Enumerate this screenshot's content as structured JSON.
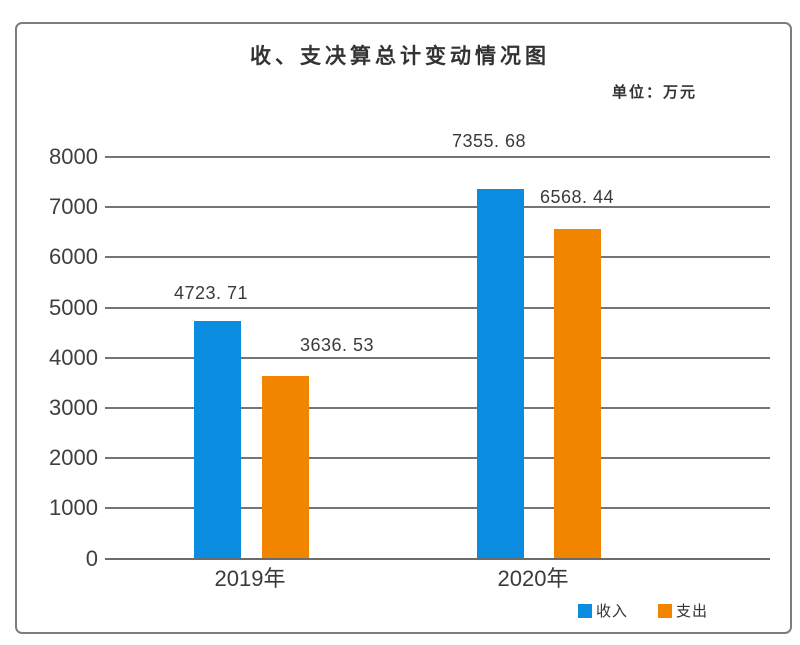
{
  "chart_data": {
    "type": "bar",
    "title": "收、支决算总计变动情况图",
    "unit_label": "单位：万元",
    "categories": [
      "2019年",
      "2020年"
    ],
    "series": [
      {
        "name": "收入",
        "color": "#0a8de0",
        "values": [
          4723.71,
          7355.68
        ],
        "value_labels": [
          "4723. 71",
          "7355. 68"
        ]
      },
      {
        "name": "支出",
        "color": "#f28500",
        "values": [
          3636.53,
          6568.44
        ],
        "value_labels": [
          "3636. 53",
          "6568. 44"
        ]
      }
    ],
    "ylabel": "",
    "xlabel": "",
    "ylim": [
      0,
      8000
    ],
    "ytick_step": 1000,
    "yticks": [
      "0",
      "1000",
      "2000",
      "3000",
      "4000",
      "5000",
      "6000",
      "7000",
      "8000"
    ],
    "grid": true,
    "legend_position": "bottom-right"
  }
}
